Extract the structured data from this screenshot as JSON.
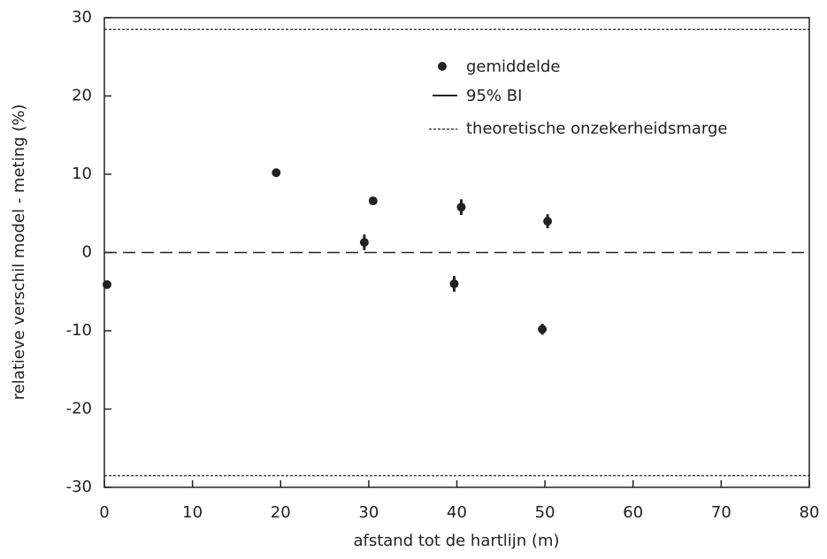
{
  "chart_data": {
    "type": "scatter",
    "xlabel": "afstand tot de hartlijn (m)",
    "ylabel": "relatieve verschil model - meting (%)",
    "xlim": [
      0,
      80
    ],
    "xticks": [
      0,
      10,
      20,
      30,
      40,
      50,
      60,
      70,
      80
    ],
    "ylim": [
      -30,
      30
    ],
    "yticks": [
      -30,
      -20,
      -10,
      0,
      10,
      20,
      30
    ],
    "series": [
      {
        "name": "gemiddelde",
        "color": "#222222",
        "x": [
          0.3,
          19.5,
          29.5,
          30.5,
          39.7,
          40.5,
          49.7,
          50.3
        ],
        "values": [
          -4.1,
          10.2,
          1.3,
          6.6,
          -4.0,
          5.8,
          -9.8,
          4.0
        ],
        "errors": [
          0.4,
          0.3,
          1.0,
          0.5,
          1.0,
          1.0,
          0.7,
          0.9
        ]
      }
    ],
    "error_name": "95% BI",
    "margin": {
      "name": "theoretische onzekerheidsmarge",
      "values": [
        28.5,
        -28.5
      ]
    },
    "reference_line": 0
  }
}
